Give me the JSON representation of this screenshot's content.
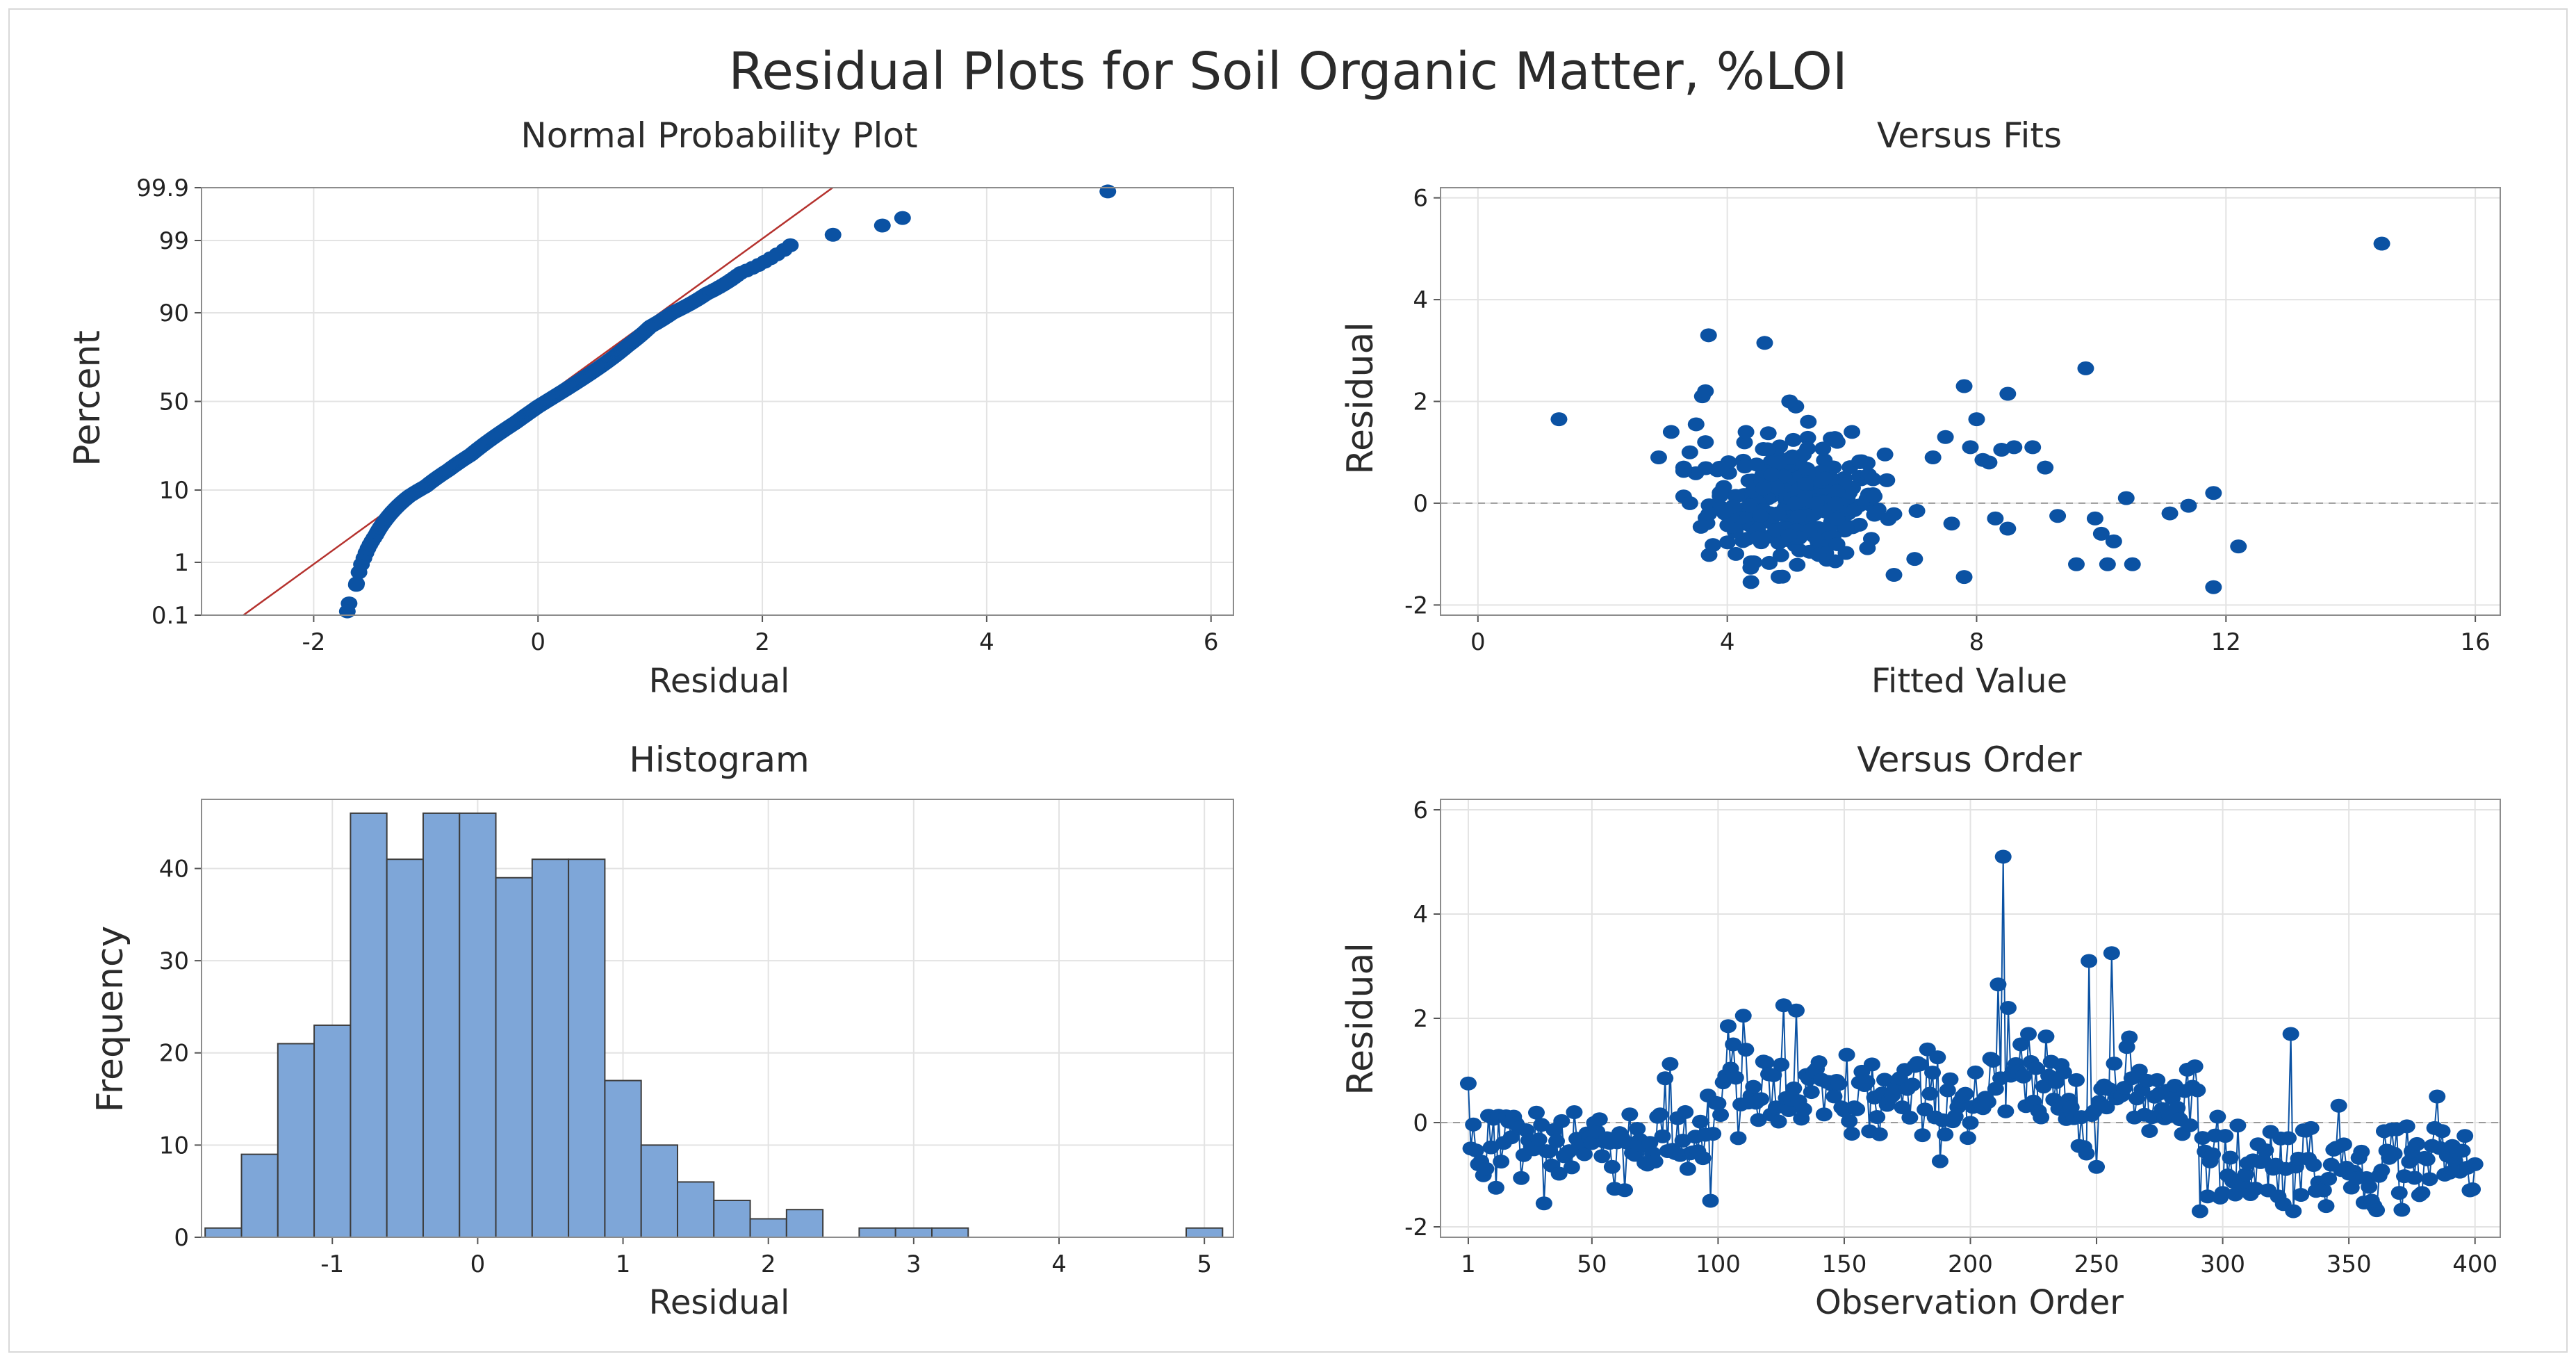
{
  "title": "Residual Plots for Soil Organic Matter, %LOI",
  "colors": {
    "points": "#0b52a3",
    "bars": "#7ea6d8",
    "fit_line": "#b5322e",
    "grid": "#e3e3e3",
    "zero_line": "#9a9a9a"
  },
  "chart_data": [
    {
      "id": "normal_probability",
      "type": "scatter",
      "title": "Normal Probability Plot",
      "xlabel": "Residual",
      "ylabel": "Percent",
      "xlim": [
        -3.0,
        6.2
      ],
      "x_ticks": [
        -2,
        0,
        2,
        4,
        6
      ],
      "y_ticks": [
        {
          "label": "0.1",
          "p": 0.1
        },
        {
          "label": "1",
          "p": 1
        },
        {
          "label": "10",
          "p": 10
        },
        {
          "label": "50",
          "p": 50
        },
        {
          "label": "90",
          "p": 90
        },
        {
          "label": "99",
          "p": 99
        },
        {
          "label": "99.9",
          "p": 99.9
        }
      ],
      "fit_line": {
        "mean": 0.0,
        "sd": 0.85
      },
      "sample_size": 400,
      "points": [
        [
          -1.7,
          0.12
        ],
        [
          -1.62,
          0.4
        ],
        [
          -1.55,
          1.2
        ],
        [
          -1.45,
          2.6
        ],
        [
          -1.35,
          4.5
        ],
        [
          -1.25,
          6.5
        ],
        [
          -1.15,
          8.5
        ],
        [
          -1.0,
          11
        ],
        [
          -0.8,
          16
        ],
        [
          -0.6,
          22
        ],
        [
          -0.4,
          30
        ],
        [
          -0.2,
          38
        ],
        [
          0.0,
          47
        ],
        [
          0.2,
          55
        ],
        [
          0.4,
          63
        ],
        [
          0.6,
          71
        ],
        [
          0.8,
          79
        ],
        [
          1.0,
          86
        ],
        [
          1.2,
          90
        ],
        [
          1.5,
          94
        ],
        [
          1.8,
          96.8
        ],
        [
          2.1,
          98.2
        ],
        [
          2.25,
          98.8
        ],
        [
          2.63,
          99.2
        ],
        [
          3.07,
          99.45
        ],
        [
          3.25,
          99.6
        ],
        [
          5.08,
          99.88
        ]
      ]
    },
    {
      "id": "versus_fits",
      "type": "scatter",
      "title": "Versus Fits",
      "xlabel": "Fitted Value",
      "ylabel": "Residual",
      "xlim": [
        -0.6,
        16.4
      ],
      "ylim": [
        -2.2,
        6.2
      ],
      "x_ticks": [
        0,
        4,
        8,
        12,
        16
      ],
      "y_ticks": [
        -2,
        0,
        2,
        4,
        6
      ],
      "reference_line": 0,
      "points": [
        [
          1.3,
          1.65
        ],
        [
          2.9,
          0.9
        ],
        [
          3.1,
          1.4
        ],
        [
          3.3,
          0.7
        ],
        [
          3.4,
          1.0
        ],
        [
          3.4,
          0.0
        ],
        [
          3.5,
          1.55
        ],
        [
          3.6,
          2.1
        ],
        [
          3.65,
          2.2
        ],
        [
          3.7,
          3.3
        ],
        [
          3.65,
          1.2
        ],
        [
          4.6,
          3.15
        ],
        [
          5.1,
          1.9
        ],
        [
          5.0,
          2.0
        ],
        [
          5.3,
          1.6
        ],
        [
          6.0,
          1.4
        ],
        [
          4.3,
          1.4
        ],
        [
          7.3,
          0.9
        ],
        [
          7.5,
          1.3
        ],
        [
          7.8,
          2.3
        ],
        [
          7.9,
          1.1
        ],
        [
          8.0,
          1.65
        ],
        [
          8.1,
          0.85
        ],
        [
          8.2,
          0.8
        ],
        [
          8.4,
          1.05
        ],
        [
          8.5,
          2.15
        ],
        [
          8.6,
          1.1
        ],
        [
          8.9,
          1.1
        ],
        [
          9.1,
          0.7
        ],
        [
          7.6,
          -0.4
        ],
        [
          7.8,
          -1.45
        ],
        [
          8.3,
          -0.3
        ],
        [
          8.5,
          -0.5
        ],
        [
          9.3,
          -0.25
        ],
        [
          9.6,
          -1.2
        ],
        [
          9.9,
          -0.3
        ],
        [
          10.0,
          -0.6
        ],
        [
          10.1,
          -1.2
        ],
        [
          10.2,
          -0.75
        ],
        [
          10.5,
          -1.2
        ],
        [
          10.4,
          0.1
        ],
        [
          9.75,
          2.65
        ],
        [
          11.1,
          -0.2
        ],
        [
          11.4,
          -0.05
        ],
        [
          11.8,
          0.2
        ],
        [
          11.8,
          -1.65
        ],
        [
          12.2,
          -0.85
        ],
        [
          14.5,
          5.1
        ]
      ],
      "cluster": {
        "center": [
          5.1,
          0.0
        ],
        "spread": [
          0.7,
          0.55
        ],
        "count": 330
      }
    },
    {
      "id": "histogram",
      "type": "bar",
      "title": "Histogram",
      "xlabel": "Residual",
      "ylabel": "Frequency",
      "xlim": [
        -1.9,
        5.2
      ],
      "ylim": [
        0,
        47.5
      ],
      "x_ticks": [
        -1,
        0,
        1,
        2,
        3,
        4,
        5
      ],
      "y_ticks": [
        0,
        10,
        20,
        30,
        40
      ],
      "bin_start": -1.875,
      "bin_width": 0.25,
      "values": [
        1,
        9,
        21,
        23,
        46,
        41,
        46,
        46,
        39,
        41,
        41,
        17,
        10,
        6,
        4,
        2,
        3,
        0,
        1,
        1,
        1,
        0,
        0,
        0,
        0,
        0,
        0,
        1
      ]
    },
    {
      "id": "versus_order",
      "type": "line",
      "title": "Versus Order",
      "xlabel": "Observation Order",
      "ylabel": "Residual",
      "xlim": [
        -10,
        410
      ],
      "ylim": [
        -2.2,
        6.2
      ],
      "x_ticks": [
        1,
        50,
        100,
        150,
        200,
        250,
        300,
        350,
        400
      ],
      "y_ticks": [
        -2,
        0,
        2,
        4,
        6
      ],
      "reference_line": 0,
      "n": 400,
      "segment_means": [
        {
          "from": 1,
          "to": 95,
          "mean": -0.35
        },
        {
          "from": 96,
          "to": 205,
          "mean": 0.45
        },
        {
          "from": 206,
          "to": 290,
          "mean": 0.55
        },
        {
          "from": 291,
          "to": 400,
          "mean": -0.75
        }
      ],
      "spikes": [
        [
          1,
          0.75
        ],
        [
          5,
          -0.8
        ],
        [
          12,
          -1.25
        ],
        [
          31,
          -1.55
        ],
        [
          79,
          0.85
        ],
        [
          97,
          -1.5
        ],
        [
          104,
          1.85
        ],
        [
          106,
          1.5
        ],
        [
          110,
          2.05
        ],
        [
          126,
          2.25
        ],
        [
          131,
          2.15
        ],
        [
          211,
          2.65
        ],
        [
          213,
          5.1
        ],
        [
          215,
          2.2
        ],
        [
          220,
          1.5
        ],
        [
          223,
          1.7
        ],
        [
          247,
          3.1
        ],
        [
          250,
          -0.85
        ],
        [
          256,
          3.25
        ],
        [
          262,
          1.45
        ],
        [
          300,
          -1.35
        ],
        [
          318,
          -1.3
        ],
        [
          327,
          1.7
        ],
        [
          340,
          -1.3
        ],
        [
          360,
          -1.6
        ],
        [
          385,
          0.5
        ],
        [
          398,
          -1.3
        ]
      ]
    }
  ]
}
